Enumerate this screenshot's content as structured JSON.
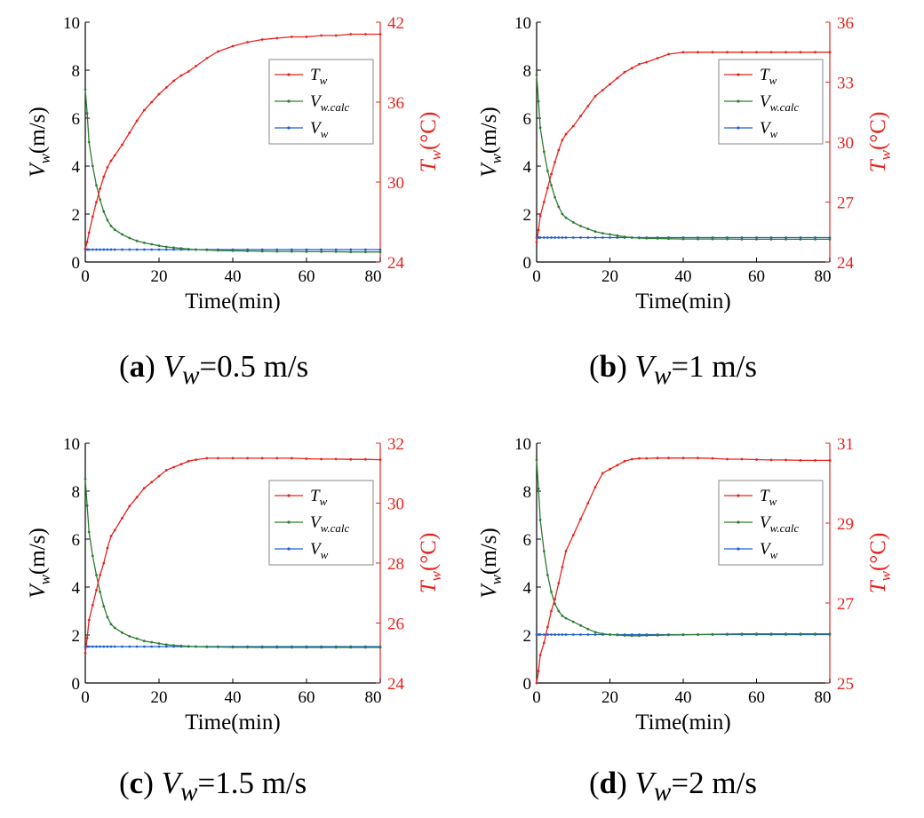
{
  "colors": {
    "t_series": "#e8231d",
    "vcalc_series": "#2e7d32",
    "v_series": "#1f5fd6",
    "right_axis": "#e8231d",
    "axis": "#000000"
  },
  "chart_data": [
    {
      "type": "line",
      "panel_letter": "a",
      "caption": {
        "symbol": "V",
        "subscript": "w",
        "equals": "=",
        "value_text": "0.5 m/s"
      },
      "xlabel": "Time(min)",
      "ylabel_left": {
        "symbol": "V",
        "subscript": "w",
        "unit": "(m/s)"
      },
      "ylabel_right": {
        "symbol": "T",
        "subscript": "w",
        "unit": "(°C)"
      },
      "xlim": [
        0,
        80
      ],
      "ylim_left": [
        0,
        10
      ],
      "ylim_right": [
        24,
        42
      ],
      "xticks": [
        0,
        20,
        40,
        60,
        80
      ],
      "yticks_left": [
        0,
        2,
        4,
        6,
        8,
        10
      ],
      "yticks_right": [
        24,
        30,
        36,
        42
      ],
      "legend": {
        "position": "top-right",
        "entries": [
          {
            "key": "T",
            "symbol": "T",
            "subscript": "w"
          },
          {
            "key": "Vcalc",
            "symbol": "V",
            "subscript": "w.calc"
          },
          {
            "key": "V",
            "symbol": "V",
            "subscript": "w"
          }
        ]
      },
      "x": [
        0,
        0.5,
        1,
        2,
        3,
        4,
        5,
        6,
        7,
        8,
        10,
        12,
        14,
        16,
        18,
        20,
        22,
        24,
        26,
        28,
        30,
        33,
        36,
        40,
        44,
        48,
        52,
        56,
        60,
        64,
        68,
        72,
        76,
        80
      ],
      "series": [
        {
          "name": "T",
          "axis": "right",
          "values": [
            25.0,
            25.5,
            26.2,
            27.4,
            28.5,
            29.5,
            30.4,
            31.1,
            31.6,
            32.0,
            32.8,
            33.7,
            34.6,
            35.4,
            36.0,
            36.6,
            37.1,
            37.6,
            38.0,
            38.3,
            38.7,
            39.3,
            39.8,
            40.2,
            40.5,
            40.7,
            40.8,
            40.9,
            40.9,
            41.0,
            41.0,
            41.1,
            41.1,
            41.1
          ]
        },
        {
          "name": "Vcalc",
          "axis": "left",
          "values": [
            7.2,
            6.2,
            5.0,
            4.0,
            3.2,
            2.6,
            2.1,
            1.75,
            1.5,
            1.35,
            1.15,
            1.0,
            0.88,
            0.8,
            0.74,
            0.68,
            0.63,
            0.6,
            0.57,
            0.54,
            0.52,
            0.5,
            0.48,
            0.47,
            0.46,
            0.45,
            0.44,
            0.44,
            0.43,
            0.43,
            0.43,
            0.42,
            0.42,
            0.42
          ]
        },
        {
          "name": "V",
          "axis": "left",
          "values": [
            0.52,
            0.52,
            0.52,
            0.52,
            0.52,
            0.52,
            0.52,
            0.52,
            0.52,
            0.52,
            0.52,
            0.52,
            0.52,
            0.52,
            0.52,
            0.52,
            0.52,
            0.52,
            0.52,
            0.52,
            0.52,
            0.52,
            0.52,
            0.52,
            0.52,
            0.52,
            0.52,
            0.52,
            0.52,
            0.52,
            0.52,
            0.52,
            0.52,
            0.52
          ]
        }
      ]
    },
    {
      "type": "line",
      "panel_letter": "b",
      "caption": {
        "symbol": "V",
        "subscript": "w",
        "equals": "=",
        "value_text": "1 m/s"
      },
      "xlabel": "Time(min)",
      "ylabel_left": {
        "symbol": "V",
        "subscript": "w",
        "unit": "(m/s)"
      },
      "ylabel_right": {
        "symbol": "T",
        "subscript": "w",
        "unit": "(°C)"
      },
      "xlim": [
        0,
        80
      ],
      "ylim_left": [
        0,
        10
      ],
      "ylim_right": [
        24,
        36
      ],
      "xticks": [
        0,
        20,
        40,
        60,
        80
      ],
      "yticks_left": [
        0,
        2,
        4,
        6,
        8,
        10
      ],
      "yticks_right": [
        24,
        27,
        30,
        33,
        36
      ],
      "legend": {
        "position": "top-right",
        "entries": [
          {
            "key": "T",
            "symbol": "T",
            "subscript": "w"
          },
          {
            "key": "Vcalc",
            "symbol": "V",
            "subscript": "w.calc"
          },
          {
            "key": "V",
            "symbol": "V",
            "subscript": "w"
          }
        ]
      },
      "x": [
        0,
        0.5,
        1,
        2,
        3,
        4,
        5,
        6,
        7,
        8,
        10,
        12,
        14,
        16,
        18,
        20,
        22,
        24,
        26,
        28,
        30,
        33,
        36,
        40,
        44,
        48,
        52,
        56,
        60,
        64,
        68,
        72,
        76,
        80
      ],
      "series": [
        {
          "name": "T",
          "axis": "right",
          "values": [
            25.0,
            25.6,
            26.3,
            27.0,
            27.7,
            28.4,
            29.0,
            29.6,
            30.1,
            30.4,
            30.8,
            31.3,
            31.8,
            32.3,
            32.6,
            32.9,
            33.2,
            33.5,
            33.7,
            33.9,
            34.0,
            34.2,
            34.4,
            34.5,
            34.5,
            34.5,
            34.5,
            34.5,
            34.5,
            34.5,
            34.5,
            34.5,
            34.5,
            34.5
          ]
        },
        {
          "name": "Vcalc",
          "axis": "left",
          "values": [
            7.8,
            6.7,
            5.6,
            4.6,
            3.8,
            3.2,
            2.7,
            2.3,
            2.0,
            1.85,
            1.65,
            1.5,
            1.38,
            1.27,
            1.2,
            1.15,
            1.1,
            1.05,
            1.02,
            1.0,
            0.99,
            0.98,
            0.97,
            0.96,
            0.96,
            0.96,
            0.96,
            0.95,
            0.95,
            0.95,
            0.95,
            0.95,
            0.95,
            0.95
          ]
        },
        {
          "name": "V",
          "axis": "left",
          "values": [
            1.02,
            1.02,
            1.02,
            1.02,
            1.02,
            1.02,
            1.02,
            1.02,
            1.02,
            1.02,
            1.02,
            1.02,
            1.02,
            1.02,
            1.02,
            1.02,
            1.02,
            1.02,
            1.02,
            1.02,
            1.02,
            1.02,
            1.02,
            1.02,
            1.02,
            1.02,
            1.02,
            1.02,
            1.02,
            1.02,
            1.02,
            1.02,
            1.02,
            1.02
          ]
        }
      ]
    },
    {
      "type": "line",
      "panel_letter": "c",
      "caption": {
        "symbol": "V",
        "subscript": "w",
        "equals": "=",
        "value_text": "1.5 m/s"
      },
      "xlabel": "Time(min)",
      "ylabel_left": {
        "symbol": "V",
        "subscript": "w",
        "unit": "(m/s)"
      },
      "ylabel_right": {
        "symbol": "T",
        "subscript": "w",
        "unit": "(°C)"
      },
      "xlim": [
        0,
        80
      ],
      "ylim_left": [
        0,
        10
      ],
      "ylim_right": [
        24,
        32
      ],
      "xticks": [
        0,
        20,
        40,
        60,
        80
      ],
      "yticks_left": [
        0,
        2,
        4,
        6,
        8,
        10
      ],
      "yticks_right": [
        24,
        26,
        28,
        30,
        32
      ],
      "legend": {
        "position": "top-right",
        "entries": [
          {
            "key": "T",
            "symbol": "T",
            "subscript": "w"
          },
          {
            "key": "Vcalc",
            "symbol": "V",
            "subscript": "w.calc"
          },
          {
            "key": "V",
            "symbol": "V",
            "subscript": "w"
          }
        ]
      },
      "x": [
        0,
        0.5,
        1,
        2,
        3,
        4,
        5,
        6,
        7,
        8,
        10,
        12,
        14,
        16,
        18,
        20,
        22,
        24,
        26,
        28,
        30,
        33,
        36,
        40,
        44,
        48,
        52,
        56,
        60,
        64,
        68,
        72,
        76,
        80
      ],
      "series": [
        {
          "name": "T",
          "axis": "right",
          "values": [
            25.0,
            25.5,
            26.1,
            26.6,
            27.1,
            27.6,
            28.0,
            28.5,
            28.9,
            29.1,
            29.5,
            29.9,
            30.2,
            30.5,
            30.7,
            30.9,
            31.1,
            31.2,
            31.3,
            31.4,
            31.45,
            31.5,
            31.5,
            31.5,
            31.5,
            31.5,
            31.5,
            31.5,
            31.48,
            31.47,
            31.47,
            31.46,
            31.46,
            31.45
          ]
        },
        {
          "name": "Vcalc",
          "axis": "left",
          "values": [
            8.5,
            7.4,
            6.3,
            5.3,
            4.5,
            3.8,
            3.2,
            2.75,
            2.45,
            2.3,
            2.1,
            1.95,
            1.85,
            1.75,
            1.7,
            1.65,
            1.6,
            1.57,
            1.55,
            1.53,
            1.52,
            1.5,
            1.5,
            1.49,
            1.49,
            1.48,
            1.48,
            1.48,
            1.48,
            1.48,
            1.48,
            1.48,
            1.48,
            1.48
          ]
        },
        {
          "name": "V",
          "axis": "left",
          "values": [
            1.52,
            1.52,
            1.52,
            1.52,
            1.52,
            1.52,
            1.52,
            1.52,
            1.52,
            1.52,
            1.52,
            1.52,
            1.52,
            1.52,
            1.52,
            1.52,
            1.52,
            1.52,
            1.52,
            1.52,
            1.52,
            1.52,
            1.52,
            1.52,
            1.52,
            1.52,
            1.52,
            1.52,
            1.52,
            1.52,
            1.52,
            1.52,
            1.52,
            1.52
          ]
        }
      ]
    },
    {
      "type": "line",
      "panel_letter": "d",
      "caption": {
        "symbol": "V",
        "subscript": "w",
        "equals": "=",
        "value_text": "2 m/s"
      },
      "xlabel": "Time(min)",
      "ylabel_left": {
        "symbol": "V",
        "subscript": "w",
        "unit": "(m/s)"
      },
      "ylabel_right": {
        "symbol": "T",
        "subscript": "w",
        "unit": "(°C)"
      },
      "xlim": [
        0,
        80
      ],
      "ylim_left": [
        0,
        10
      ],
      "ylim_right": [
        25,
        31
      ],
      "xticks": [
        0,
        20,
        40,
        60,
        80
      ],
      "yticks_left": [
        0,
        2,
        4,
        6,
        8,
        10
      ],
      "yticks_right": [
        25,
        27,
        29,
        31
      ],
      "legend": {
        "position": "top-right",
        "entries": [
          {
            "key": "T",
            "symbol": "T",
            "subscript": "w"
          },
          {
            "key": "Vcalc",
            "symbol": "V",
            "subscript": "w.calc"
          },
          {
            "key": "V",
            "symbol": "V",
            "subscript": "w"
          }
        ]
      },
      "x": [
        0,
        0.5,
        1,
        2,
        3,
        4,
        5,
        6,
        7,
        8,
        10,
        12,
        14,
        16,
        18,
        20,
        22,
        24,
        26,
        28,
        30,
        33,
        36,
        40,
        44,
        48,
        52,
        56,
        60,
        64,
        68,
        72,
        76,
        80
      ],
      "series": [
        {
          "name": "T",
          "axis": "right",
          "values": [
            25.0,
            25.3,
            25.7,
            26.0,
            26.4,
            26.8,
            27.1,
            27.5,
            27.9,
            28.3,
            28.7,
            29.1,
            29.5,
            29.9,
            30.25,
            30.35,
            30.45,
            30.55,
            30.6,
            30.62,
            30.62,
            30.63,
            30.63,
            30.63,
            30.63,
            30.62,
            30.6,
            30.6,
            30.59,
            30.58,
            30.58,
            30.57,
            30.57,
            30.57
          ]
        },
        {
          "name": "Vcalc",
          "axis": "left",
          "values": [
            9.3,
            8.1,
            6.8,
            5.5,
            4.5,
            3.8,
            3.3,
            3.0,
            2.8,
            2.7,
            2.55,
            2.4,
            2.25,
            2.12,
            2.05,
            2.02,
            2.0,
            1.98,
            1.97,
            1.97,
            1.98,
            1.99,
            2.0,
            2.01,
            2.02,
            2.03,
            2.04,
            2.05,
            2.05,
            2.05,
            2.05,
            2.05,
            2.05,
            2.05
          ]
        },
        {
          "name": "V",
          "axis": "left",
          "values": [
            2.02,
            2.02,
            2.02,
            2.02,
            2.02,
            2.02,
            2.02,
            2.02,
            2.02,
            2.02,
            2.02,
            2.02,
            2.02,
            2.02,
            2.02,
            2.02,
            2.02,
            2.02,
            2.02,
            2.02,
            2.02,
            2.02,
            2.02,
            2.02,
            2.02,
            2.02,
            2.02,
            2.02,
            2.02,
            2.02,
            2.02,
            2.02,
            2.02,
            2.02
          ]
        }
      ]
    }
  ]
}
